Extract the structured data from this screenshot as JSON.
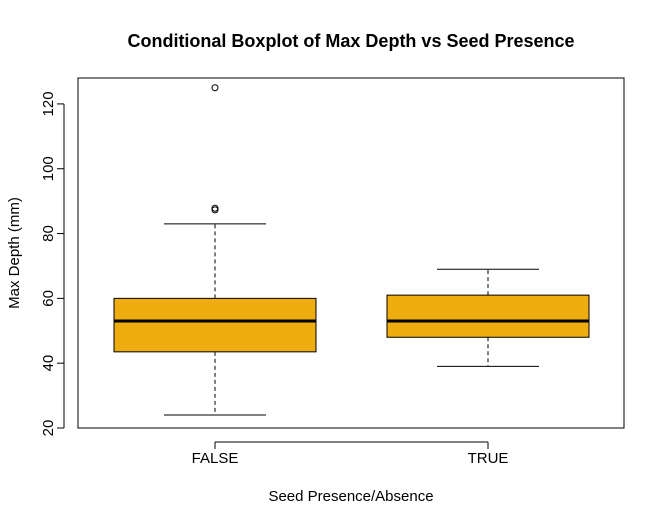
{
  "chart_data": {
    "type": "boxplot",
    "title": "Conditional Boxplot of Max Depth vs Seed Presence",
    "xlabel": "Seed Presence/Absence",
    "ylabel": "Max Depth (mm)",
    "ylim": [
      20,
      128
    ],
    "yticks": [
      20,
      40,
      60,
      80,
      100,
      120
    ],
    "categories": [
      "FALSE",
      "TRUE"
    ],
    "boxes": [
      {
        "category": "FALSE",
        "whisker_low": 24,
        "q1": 43.5,
        "median": 53,
        "q3": 60,
        "whisker_high": 83,
        "outliers": [
          87.3,
          87.8,
          125
        ]
      },
      {
        "category": "TRUE",
        "whisker_low": 39,
        "q1": 48,
        "median": 53,
        "q3": 61,
        "whisker_high": 69,
        "outliers": []
      }
    ],
    "fill_color": "#EEAD0E",
    "grid": false,
    "legend": "none"
  }
}
